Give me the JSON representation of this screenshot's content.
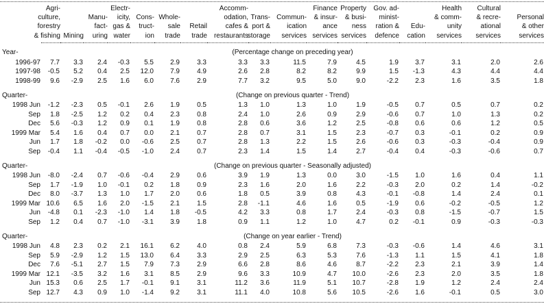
{
  "table": {
    "columns": [
      {
        "name": "agriculture-forestry-fishing",
        "lines": [
          "Agri-",
          "culture,",
          "forestry",
          "& fishing"
        ]
      },
      {
        "name": "mining",
        "lines": [
          "Mining"
        ]
      },
      {
        "name": "manufacturing",
        "lines": [
          "Manu-",
          "fact-",
          "uring"
        ]
      },
      {
        "name": "electricity-gas-water",
        "lines": [
          "Electr-",
          "icity,",
          "gas &",
          "water"
        ]
      },
      {
        "name": "construction",
        "lines": [
          "Cons-",
          "truct-",
          "ion"
        ]
      },
      {
        "name": "wholesale-trade",
        "lines": [
          "Whole-",
          "sale",
          "trade"
        ]
      },
      {
        "name": "retail-trade",
        "lines": [
          "Retail",
          "trade"
        ]
      },
      {
        "name": "accommodation-cafes-restaurants",
        "lines": [
          "Accomm-",
          "odation,",
          "cafes &",
          "restaurants"
        ]
      },
      {
        "name": "transport-storage",
        "lines": [
          "Trans-",
          "port &",
          "storage"
        ]
      },
      {
        "name": "communication-services",
        "lines": [
          "Commun-",
          "ication",
          "services"
        ]
      },
      {
        "name": "finance-insurance-services",
        "lines": [
          "Finance",
          "& insur-",
          "ance",
          "services"
        ]
      },
      {
        "name": "property-business-services",
        "lines": [
          "Property",
          "& busi-",
          "ness",
          "services"
        ]
      },
      {
        "name": "government-administration-defence",
        "lines": [
          "Gov. ad-",
          "minist-",
          "ration &",
          "defence"
        ]
      },
      {
        "name": "education",
        "lines": [
          "Edu-",
          "cation"
        ]
      },
      {
        "name": "health-community-services",
        "lines": [
          "Health",
          "& comm-",
          "unity",
          "services"
        ]
      },
      {
        "name": "cultural-recreational-services",
        "lines": [
          "Cultural",
          "& recre-",
          "ational",
          "services"
        ]
      },
      {
        "name": "personal-other-services",
        "lines": [
          "Personal",
          "& other",
          "services"
        ]
      }
    ],
    "sections": [
      {
        "label": "Year-",
        "caption": "(Percentage change on preceding year)",
        "rows": [
          {
            "label": "1996-97",
            "values": [
              "7.7",
              "3.3",
              "2.4",
              "-0.3",
              "5.5",
              "2.9",
              "3.3",
              "3.3",
              "3.3",
              "11.5",
              "7.9",
              "4.5",
              "1.9",
              "3.7",
              "3.1",
              "2.0",
              "2.6"
            ]
          },
          {
            "label": "1997-98",
            "values": [
              "-0.5",
              "5.2",
              "0.4",
              "2.5",
              "12.0",
              "7.9",
              "4.9",
              "2.6",
              "2.8",
              "8.2",
              "8.2",
              "9.9",
              "1.5",
              "-1.3",
              "4.3",
              "4.4",
              "4.4"
            ]
          },
          {
            "label": "1998-99",
            "values": [
              "9.6",
              "-2.9",
              "2.5",
              "1.6",
              "6.0",
              "7.6",
              "2.9",
              "7.7",
              "3.2",
              "9.5",
              "5.0",
              "9.0",
              "-2.2",
              "2.3",
              "1.6",
              "3.5",
              "1.8"
            ]
          }
        ]
      },
      {
        "label": "Quarter-",
        "caption": "(Change on previous quarter - Trend)",
        "rows": [
          {
            "label": "1998 Jun",
            "values": [
              "-1.2",
              "-2.3",
              "0.5",
              "-0.1",
              "2.6",
              "1.9",
              "0.5",
              "1.3",
              "1.0",
              "1.3",
              "1.0",
              "1.9",
              "-0.5",
              "0.7",
              "0.5",
              "0.7",
              "0.2"
            ]
          },
          {
            "label": "Sep",
            "values": [
              "1.8",
              "-2.5",
              "1.2",
              "0.2",
              "0.4",
              "2.3",
              "0.8",
              "2.4",
              "1.0",
              "2.6",
              "0.9",
              "2.9",
              "-0.6",
              "0.7",
              "1.0",
              "1.3",
              "0.2"
            ]
          },
          {
            "label": "Dec",
            "values": [
              "5.6",
              "-0.3",
              "1.2",
              "0.9",
              "0.1",
              "1.9",
              "0.8",
              "2.8",
              "0.6",
              "3.6",
              "1.2",
              "2.5",
              "-0.8",
              "0.6",
              "0.6",
              "1.2",
              "0.5"
            ]
          },
          {
            "label": "1999 Mar",
            "values": [
              "5.4",
              "1.6",
              "0.4",
              "0.7",
              "0.0",
              "2.1",
              "0.7",
              "2.8",
              "0.7",
              "3.1",
              "1.5",
              "2.3",
              "-0.7",
              "0.3",
              "-0.1",
              "0.2",
              "0.9"
            ]
          },
          {
            "label": "Jun",
            "values": [
              "1.7",
              "1.8",
              "-0.2",
              "0.0",
              "-0.6",
              "2.5",
              "0.7",
              "2.8",
              "1.3",
              "2.2",
              "1.5",
              "2.6",
              "-0.6",
              "0.3",
              "-0.3",
              "-0.4",
              "0.9"
            ]
          },
          {
            "label": "Sep",
            "values": [
              "-0.4",
              "1.1",
              "-0.4",
              "-0.5",
              "-1.0",
              "2.4",
              "0.7",
              "2.3",
              "1.4",
              "1.5",
              "1.4",
              "2.7",
              "-0.4",
              "0.4",
              "-0.3",
              "-0.6",
              "0.7"
            ]
          }
        ]
      },
      {
        "label": "Quarter-",
        "caption": "(Change on previous quarter - Seasonally adjusted)",
        "rows": [
          {
            "label": "1998 Jun",
            "values": [
              "-8.0",
              "-2.4",
              "0.7",
              "-0.6",
              "-0.4",
              "2.9",
              "0.6",
              "3.9",
              "1.9",
              "1.3",
              "0.0",
              "3.0",
              "-1.5",
              "1.0",
              "1.6",
              "0.4",
              "1.1"
            ]
          },
          {
            "label": "Sep",
            "values": [
              "1.7",
              "-1.9",
              "1.0",
              "-0.1",
              "0.2",
              "1.8",
              "0.9",
              "2.3",
              "1.6",
              "2.0",
              "1.6",
              "2.2",
              "-0.3",
              "2.0",
              "0.2",
              "1.4",
              "-0.2"
            ]
          },
          {
            "label": "Dec",
            "values": [
              "8.0",
              "-3.7",
              "1.3",
              "1.0",
              "1.7",
              "2.0",
              "0.6",
              "1.8",
              "0.5",
              "3.9",
              "0.8",
              "4.3",
              "-0.1",
              "-0.8",
              "1.4",
              "2.4",
              "0.1"
            ]
          },
          {
            "label": "1999 Mar",
            "values": [
              "10.6",
              "6.5",
              "1.6",
              "2.0",
              "-1.5",
              "2.1",
              "1.5",
              "2.8",
              "-1.1",
              "4.6",
              "1.6",
              "0.5",
              "-1.9",
              "0.6",
              "-0.2",
              "-0.5",
              "1.2"
            ]
          },
          {
            "label": "Jun",
            "values": [
              "-4.8",
              "0.1",
              "-2.3",
              "-1.0",
              "1.4",
              "1.8",
              "-0.5",
              "4.2",
              "3.3",
              "0.8",
              "1.7",
              "2.4",
              "-0.3",
              "0.8",
              "-1.5",
              "-0.7",
              "1.5"
            ]
          },
          {
            "label": "Sep",
            "values": [
              "1.2",
              "0.4",
              "0.7",
              "-1.0",
              "-3.1",
              "3.9",
              "1.8",
              "0.9",
              "1.1",
              "1.2",
              "1.0",
              "4.7",
              "0.2",
              "-0.1",
              "0.9",
              "-0.3",
              "-0.3"
            ]
          }
        ]
      },
      {
        "label": "Quarter-",
        "caption": "(Change on year earlier - Trend)",
        "rows": [
          {
            "label": "1998 Jun",
            "values": [
              "4.8",
              "2.3",
              "0.2",
              "2.1",
              "16.1",
              "6.2",
              "4.0",
              "0.8",
              "2.4",
              "5.9",
              "6.8",
              "7.3",
              "-0.3",
              "-0.6",
              "1.4",
              "4.6",
              "3.1"
            ]
          },
          {
            "label": "Sep",
            "values": [
              "5.9",
              "-2.9",
              "1.2",
              "1.5",
              "13.0",
              "6.4",
              "3.3",
              "2.9",
              "2.5",
              "6.3",
              "5.3",
              "7.6",
              "-1.3",
              "1.1",
              "1.5",
              "4.1",
              "1.8"
            ]
          },
          {
            "label": "Dec",
            "values": [
              "7.6",
              "-5.1",
              "2.7",
              "1.5",
              "7.9",
              "7.3",
              "2.9",
              "6.6",
              "2.8",
              "8.6",
              "4.6",
              "8.7",
              "-2.2",
              "2.3",
              "2.1",
              "3.9",
              "1.4"
            ]
          },
          {
            "label": "1999 Mar",
            "values": [
              "12.1",
              "-3.5",
              "3.2",
              "1.6",
              "3.1",
              "8.5",
              "2.9",
              "9.6",
              "3.3",
              "10.9",
              "4.7",
              "10.0",
              "-2.6",
              "2.3",
              "2.0",
              "3.5",
              "1.8"
            ]
          },
          {
            "label": "Jun",
            "values": [
              "15.3",
              "0.6",
              "2.5",
              "1.7",
              "-0.1",
              "9.1",
              "3.1",
              "11.2",
              "3.6",
              "11.9",
              "5.1",
              "10.7",
              "-2.8",
              "1.9",
              "1.2",
              "2.4",
              "2.4"
            ]
          },
          {
            "label": "Sep",
            "values": [
              "12.7",
              "4.3",
              "0.9",
              "1.0",
              "-1.4",
              "9.2",
              "3.1",
              "11.1",
              "4.0",
              "10.8",
              "5.6",
              "10.5",
              "-2.6",
              "1.6",
              "-0.1",
              "0.5",
              "3.0"
            ]
          }
        ]
      }
    ]
  }
}
